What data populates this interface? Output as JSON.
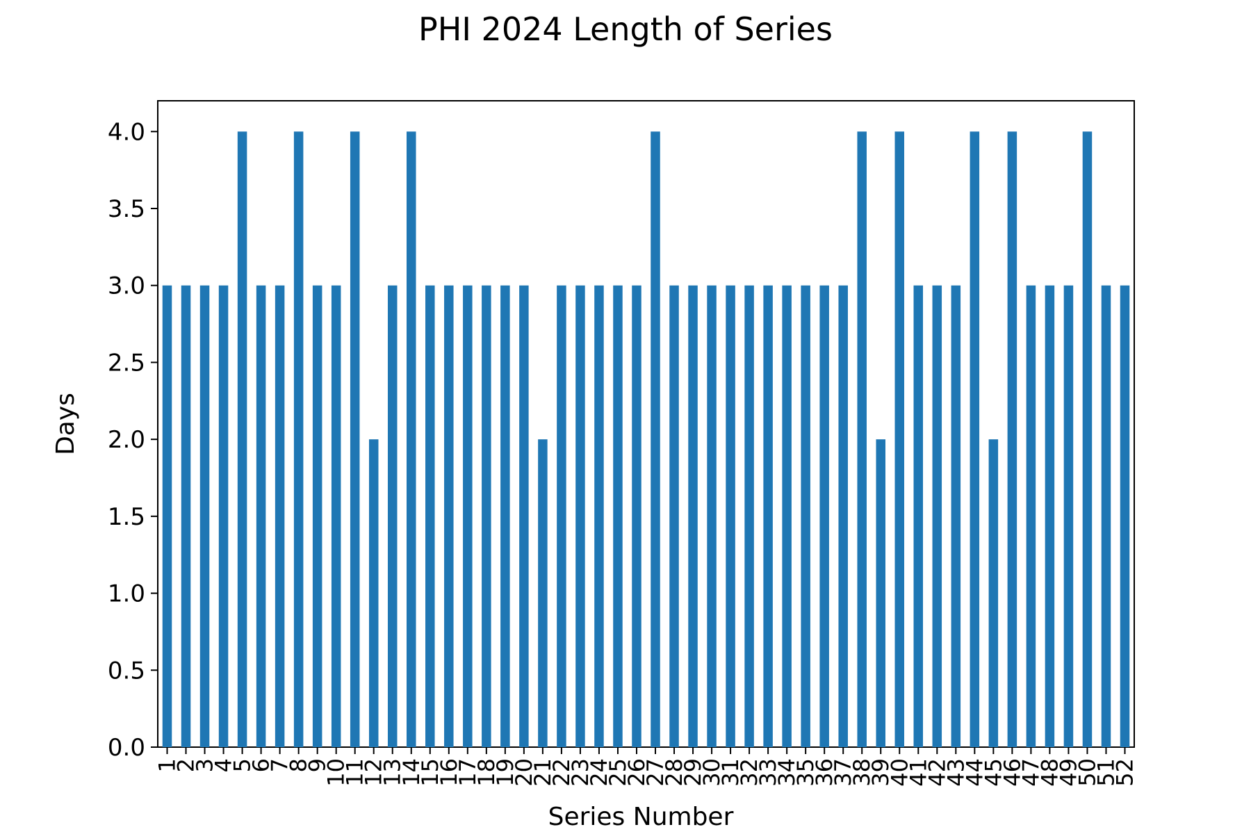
{
  "chart_data": {
    "type": "bar",
    "title": "PHI 2024 Length of Series",
    "xlabel": "Series Number",
    "ylabel": "Days",
    "ylim": [
      0,
      4.2
    ],
    "yticks": [
      "0.0",
      "0.5",
      "1.0",
      "1.5",
      "2.0",
      "2.5",
      "3.0",
      "3.5",
      "4.0"
    ],
    "categories": [
      "1",
      "2",
      "3",
      "4",
      "5",
      "6",
      "7",
      "8",
      "9",
      "10",
      "11",
      "12",
      "13",
      "14",
      "15",
      "16",
      "17",
      "18",
      "19",
      "20",
      "21",
      "22",
      "23",
      "24",
      "25",
      "26",
      "27",
      "28",
      "29",
      "30",
      "31",
      "32",
      "33",
      "34",
      "35",
      "36",
      "37",
      "38",
      "39",
      "40",
      "41",
      "42",
      "43",
      "44",
      "45",
      "46",
      "47",
      "48",
      "49",
      "50",
      "51",
      "52"
    ],
    "values": [
      3,
      3,
      3,
      3,
      4,
      3,
      3,
      4,
      3,
      3,
      4,
      2,
      3,
      4,
      3,
      3,
      3,
      3,
      3,
      3,
      2,
      3,
      3,
      3,
      3,
      3,
      4,
      3,
      3,
      3,
      3,
      3,
      3,
      3,
      3,
      3,
      3,
      4,
      2,
      4,
      3,
      3,
      3,
      4,
      2,
      4,
      3,
      3,
      3,
      4,
      3,
      3
    ],
    "bar_color": "#1f77b4",
    "grid": false,
    "legend": "none"
  }
}
